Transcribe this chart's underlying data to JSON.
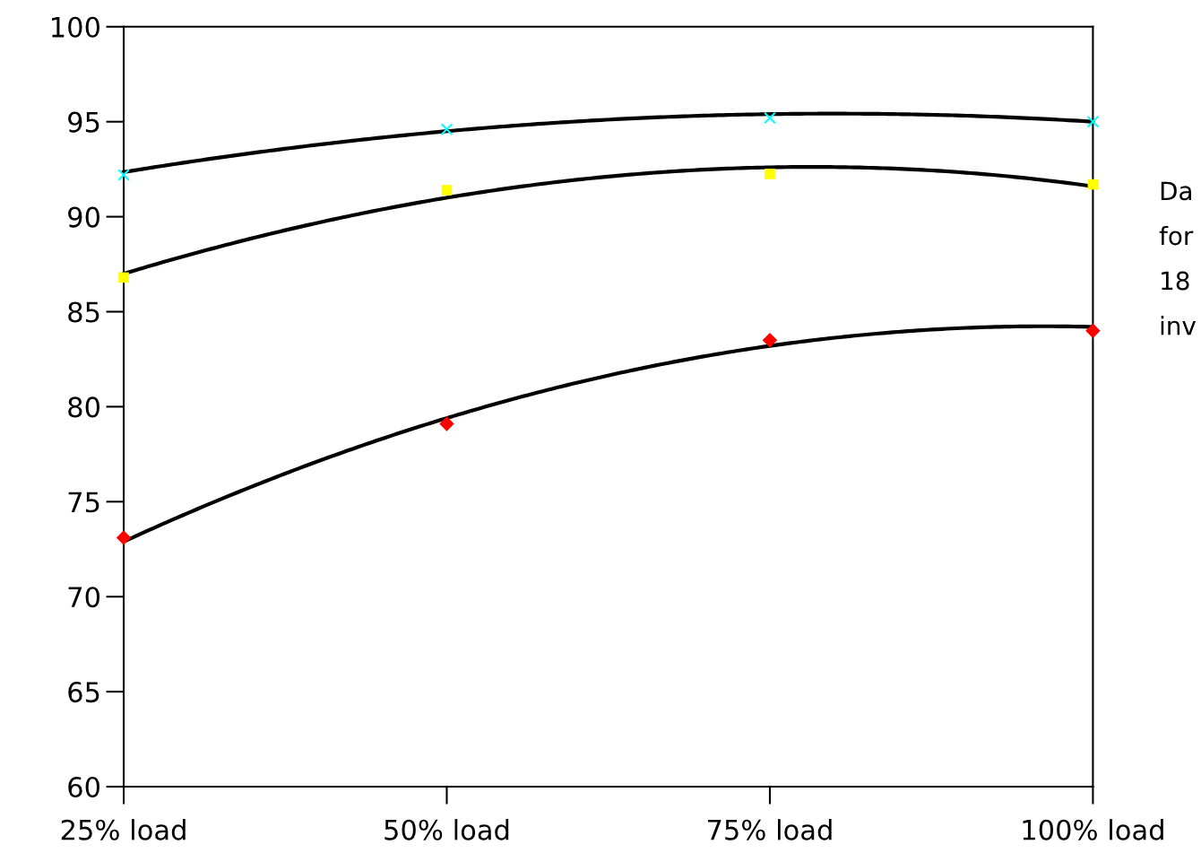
{
  "chart_data": {
    "type": "scatter",
    "categories": [
      "25% load",
      "50% load",
      "75% load",
      "100% load"
    ],
    "series": [
      {
        "color": "#00ffff",
        "marker": "cross",
        "values": [
          92.2,
          94.6,
          95.2,
          95.0
        ]
      },
      {
        "color": "#ffff00",
        "marker": "square",
        "values": [
          86.8,
          91.4,
          92.25,
          91.7
        ]
      },
      {
        "color": "#ff0000",
        "marker": "diamond",
        "values": [
          73.1,
          79.1,
          83.5,
          84.0
        ]
      },
      {
        "type": "line",
        "color": "#000000",
        "line_style": "solid",
        "values": [
          92.35,
          94.5,
          95.4,
          95.0
        ]
      },
      {
        "type": "line",
        "color": "#000000",
        "line_style": "solid",
        "values": [
          87.0,
          91.0,
          92.6,
          91.6
        ]
      },
      {
        "type": "line",
        "color": "#000000",
        "line_style": "solid",
        "values": [
          72.9,
          79.4,
          83.2,
          84.2
        ]
      }
    ],
    "ylim": [
      60,
      100
    ],
    "yticks": [
      60,
      65,
      70,
      75,
      80,
      85,
      90,
      95,
      100
    ],
    "grid": false,
    "legend": false,
    "annotations": [
      "Da\nfor\n18\ninv"
    ]
  }
}
